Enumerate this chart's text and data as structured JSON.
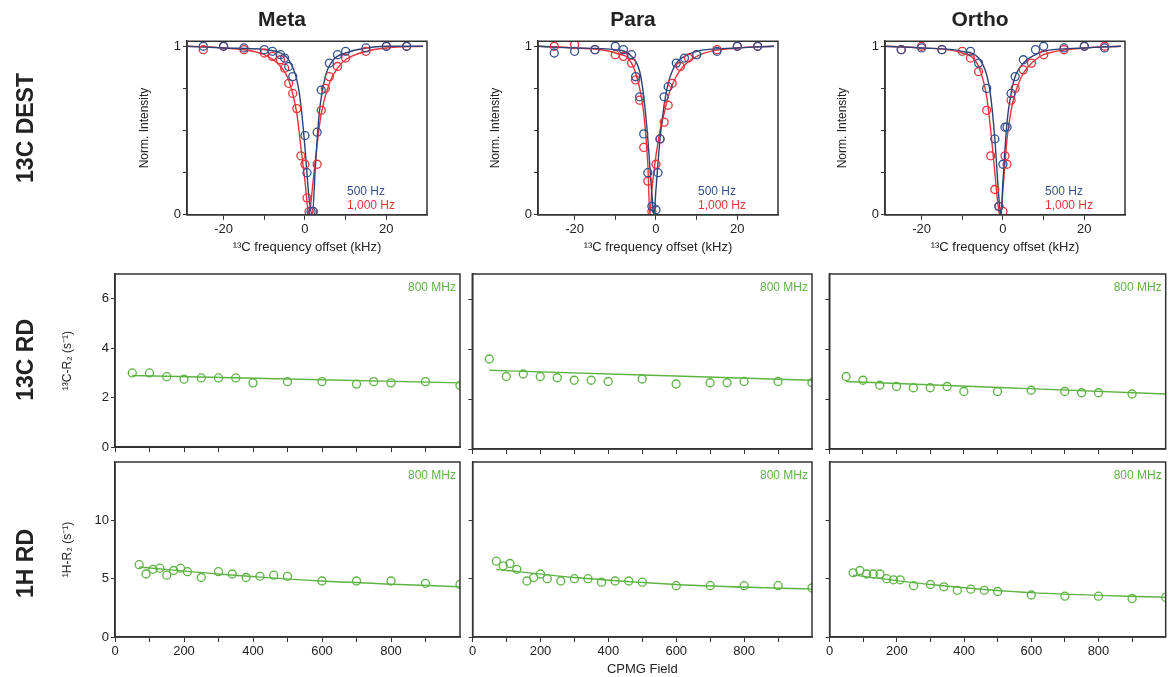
{
  "chart_data": [
    {
      "type": "scatter",
      "title": "Meta",
      "subtitle": "13C DEST",
      "xlabel": "¹³C frequency offset (kHz)",
      "ylabel": "Norm. Intensity",
      "xlim": [
        -29,
        30
      ],
      "xticks": [
        -20,
        {
          "value": -10,
          "label": null
        },
        0,
        {
          "value": 10,
          "label": null
        },
        20
      ],
      "ylim": [
        0,
        1.03
      ],
      "yticks": [
        0,
        {
          "value": 0.25,
          "label": null
        },
        {
          "value": 0.5,
          "label": null
        },
        {
          "value": 0.75,
          "label": null
        },
        1
      ],
      "marker": "circle",
      "legend": "bottom right",
      "series": [
        {
          "name": "500 Hz",
          "color": "#34508f",
          "x": [
            -25,
            -20,
            -15,
            -10,
            -8,
            -6,
            -5,
            -4,
            -3,
            0,
            0.5,
            1.5,
            2,
            3,
            4,
            6,
            8,
            10,
            15,
            20,
            25
          ],
          "values": [
            1,
            1,
            0.99,
            0.98,
            0.97,
            0.95,
            0.93,
            0.88,
            0.82,
            0.47,
            0.25,
            0.02,
            0.02,
            0.49,
            0.74,
            0.9,
            0.95,
            0.97,
            0.99,
            1,
            1
          ]
        },
        {
          "name": "1,000 Hz",
          "color": "#e8333a",
          "x": [
            -25,
            -20,
            -15,
            -10,
            -8,
            -6,
            -5,
            -4,
            -3,
            -2,
            -1,
            0,
            0.5,
            1,
            2,
            3,
            4,
            5,
            6,
            8,
            10,
            15,
            20,
            25
          ],
          "values": [
            0.98,
            1,
            0.98,
            0.96,
            0.94,
            0.92,
            0.87,
            0.78,
            0.72,
            0.63,
            0.35,
            0.3,
            0.1,
            0.02,
            0.02,
            0.3,
            0.62,
            0.75,
            0.82,
            0.88,
            0.93,
            0.97,
            1,
            1
          ]
        },
        {
          "type": "line",
          "marker": "none",
          "color": "#2b4176",
          "x": [
            -29,
            -20,
            -10,
            -6,
            -4,
            -2,
            -1,
            0,
            1,
            1.8,
            2.6,
            3.5,
            5,
            7,
            10,
            15,
            20,
            29
          ],
          "values": [
            1,
            0.99,
            0.98,
            0.96,
            0.92,
            0.8,
            0.65,
            0.4,
            0.1,
            0,
            0.3,
            0.6,
            0.82,
            0.92,
            0.96,
            0.99,
            1,
            1
          ]
        },
        {
          "type": "line",
          "marker": "none",
          "color": "#e8333a",
          "x": [
            -29,
            -20,
            -10,
            -6,
            -4,
            -2,
            -1,
            0,
            1,
            2,
            3,
            4,
            6,
            8,
            10,
            15,
            20,
            29
          ],
          "values": [
            1,
            0.99,
            0.95,
            0.88,
            0.8,
            0.6,
            0.4,
            0.2,
            0,
            0.2,
            0.42,
            0.6,
            0.78,
            0.87,
            0.92,
            0.97,
            0.99,
            1
          ]
        }
      ]
    },
    {
      "type": "scatter",
      "title": "Para",
      "xlabel": "¹³C frequency offset (kHz)",
      "ylabel": "Norm. Intensity",
      "xlim": [
        -29,
        30
      ],
      "xticks": [
        -20,
        {
          "value": -10,
          "label": null
        },
        0,
        {
          "value": 10,
          "label": null
        },
        20
      ],
      "ylim": [
        0,
        1.03
      ],
      "yticks": [
        0,
        {
          "value": 0.25,
          "label": null
        },
        {
          "value": 0.5,
          "label": null
        },
        {
          "value": 0.75,
          "label": null
        },
        1
      ],
      "marker": "circle",
      "legend": "bottom right",
      "series": [
        {
          "name": "500 Hz",
          "color": "#34508f",
          "x": [
            -25,
            -20,
            -15,
            -10,
            -8,
            -6,
            -5,
            -4,
            -3,
            -2,
            -1,
            0,
            0.5,
            1,
            2,
            3,
            5,
            7,
            10,
            15,
            20,
            25
          ],
          "values": [
            0.96,
            0.97,
            0.98,
            1,
            0.98,
            0.95,
            0.82,
            0.7,
            0.48,
            0.25,
            0.05,
            0.03,
            0.25,
            0.45,
            0.7,
            0.76,
            0.9,
            0.93,
            0.95,
            0.97,
            1,
            1
          ]
        },
        {
          "name": "1,000 Hz",
          "color": "#e8333a",
          "x": [
            -25,
            -20,
            -15,
            -10,
            -8,
            -6,
            -5,
            -4,
            -3,
            -2,
            -1,
            0,
            1,
            2,
            3,
            4,
            6,
            8,
            10,
            15,
            20,
            25
          ],
          "values": [
            1,
            1.01,
            0.98,
            0.95,
            0.94,
            0.9,
            0.8,
            0.68,
            0.4,
            0.2,
            0.02,
            0.3,
            0.45,
            0.55,
            0.65,
            0.78,
            0.88,
            0.93,
            0.95,
            0.98,
            1,
            1
          ]
        },
        {
          "type": "line",
          "marker": "none",
          "color": "#2b4176",
          "x": [
            -29,
            -20,
            -10,
            -6,
            -4,
            -3,
            -2,
            -1,
            -0.5,
            0,
            1,
            2,
            3,
            5,
            7,
            10,
            20,
            29
          ],
          "values": [
            1,
            0.99,
            0.98,
            0.94,
            0.85,
            0.7,
            0.45,
            0.12,
            0,
            0.15,
            0.45,
            0.65,
            0.78,
            0.9,
            0.94,
            0.97,
            0.99,
            1
          ]
        },
        {
          "type": "line",
          "marker": "none",
          "color": "#e8333a",
          "x": [
            -29,
            -20,
            -10,
            -6,
            -4,
            -3,
            -2,
            -1.5,
            -1,
            0,
            1,
            2,
            3,
            4,
            6,
            10,
            20,
            29
          ],
          "values": [
            1,
            0.99,
            0.96,
            0.9,
            0.75,
            0.6,
            0.3,
            0,
            0.15,
            0.35,
            0.5,
            0.6,
            0.7,
            0.77,
            0.86,
            0.94,
            0.99,
            1
          ]
        }
      ]
    },
    {
      "type": "scatter",
      "title": "Ortho",
      "xlabel": "¹³C frequency offset (kHz)",
      "ylabel": "Norm. Intensity",
      "xlim": [
        -29,
        30
      ],
      "xticks": [
        -20,
        {
          "value": -10,
          "label": null
        },
        0,
        {
          "value": 10,
          "label": null
        },
        20
      ],
      "ylim": [
        0,
        1.03
      ],
      "yticks": [
        0,
        {
          "value": 0.25,
          "label": null
        },
        {
          "value": 0.5,
          "label": null
        },
        {
          "value": 0.75,
          "label": null
        },
        1
      ],
      "marker": "circle",
      "legend": "bottom right",
      "series": [
        {
          "name": "500 Hz",
          "color": "#34508f",
          "x": [
            -25,
            -20,
            -15,
            -8,
            -6,
            -4,
            -2,
            -1,
            0,
            0.5,
            1,
            2,
            3,
            5,
            8,
            10,
            15,
            20,
            25
          ],
          "values": [
            0.98,
            0.99,
            0.98,
            0.97,
            0.9,
            0.75,
            0.45,
            0.05,
            0.3,
            0.52,
            0.52,
            0.72,
            0.82,
            0.92,
            0.98,
            1,
            0.99,
            1,
            0.99
          ]
        },
        {
          "name": "1,000 Hz",
          "color": "#e8333a",
          "x": [
            -25,
            -20,
            -15,
            -10,
            -8,
            -6,
            -4,
            -3,
            -2,
            -1,
            0,
            0.5,
            1,
            2,
            3,
            5,
            7,
            10,
            15,
            20,
            25
          ],
          "values": [
            0.98,
            1,
            0.98,
            0.97,
            0.93,
            0.85,
            0.62,
            0.35,
            0.15,
            0.05,
            0.02,
            0.35,
            0.3,
            0.68,
            0.75,
            0.86,
            0.9,
            0.95,
            0.98,
            1,
            1
          ]
        },
        {
          "type": "line",
          "marker": "none",
          "color": "#2b4176",
          "x": [
            -29,
            -20,
            -10,
            -6,
            -4,
            -3,
            -2,
            -1,
            -0.5,
            0,
            1,
            2,
            3,
            5,
            8,
            10,
            20,
            29
          ],
          "values": [
            1,
            0.99,
            0.97,
            0.93,
            0.83,
            0.7,
            0.45,
            0.1,
            0,
            0.2,
            0.55,
            0.72,
            0.82,
            0.9,
            0.95,
            0.97,
            0.99,
            1
          ]
        },
        {
          "type": "line",
          "marker": "none",
          "color": "#e8333a",
          "x": [
            -29,
            -20,
            -10,
            -6,
            -4,
            -3,
            -2,
            -1,
            -0.5,
            0,
            1,
            2,
            3,
            5,
            8,
            10,
            20,
            29
          ],
          "values": [
            1,
            0.99,
            0.96,
            0.88,
            0.7,
            0.5,
            0.25,
            0.02,
            0,
            0.15,
            0.45,
            0.62,
            0.72,
            0.84,
            0.92,
            0.95,
            0.99,
            1
          ]
        }
      ]
    },
    {
      "type": "scatter",
      "subtitle": "13C RD",
      "ylabel": "¹³C-R₂ (s⁻¹)",
      "xlim": [
        0,
        1000
      ],
      "xticks": [
        0,
        {
          "value": 100,
          "label": null
        },
        200,
        {
          "value": 300,
          "label": null
        },
        400,
        {
          "value": 500,
          "label": null
        },
        600,
        {
          "value": 700,
          "label": null
        },
        800,
        {
          "value": 900,
          "label": null
        }
      ],
      "ylim": [
        0,
        7
      ],
      "yticks": [
        0,
        2,
        4,
        6
      ],
      "tick_labels": "y",
      "marker": "circle",
      "annotations": [
        "800 MHz"
      ],
      "series": [
        {
          "color": "#5cb342",
          "x": [
            50,
            100,
            150,
            200,
            250,
            300,
            350,
            400,
            500,
            600,
            700,
            750,
            800,
            900,
            1000
          ],
          "values": [
            3,
            3,
            2.85,
            2.75,
            2.8,
            2.8,
            2.8,
            2.6,
            2.65,
            2.65,
            2.55,
            2.65,
            2.6,
            2.65,
            2.5
          ]
        },
        {
          "type": "line",
          "marker": "none",
          "color": "#5cb342",
          "x": [
            50,
            1000
          ],
          "values": [
            2.9,
            2.6
          ]
        }
      ]
    },
    {
      "type": "scatter",
      "ylabel": null,
      "xlim": [
        0,
        1000
      ],
      "xticks": [
        0,
        {
          "value": 100,
          "label": null
        },
        200,
        {
          "value": 300,
          "label": null
        },
        400,
        {
          "value": 500,
          "label": null
        },
        600,
        {
          "value": 700,
          "label": null
        },
        800,
        {
          "value": 900,
          "label": null
        }
      ],
      "ylim": [
        0,
        7
      ],
      "yticks": [
        0,
        2,
        4,
        6
      ],
      "tick_labels": false,
      "marker": "circle",
      "annotations": [
        "800 MHz"
      ],
      "series": [
        {
          "color": "#5cb342",
          "x": [
            50,
            100,
            150,
            200,
            250,
            300,
            350,
            400,
            500,
            600,
            700,
            750,
            800,
            900,
            1000
          ],
          "values": [
            3.6,
            2.9,
            3,
            2.9,
            2.85,
            2.75,
            2.75,
            2.7,
            2.8,
            2.6,
            2.65,
            2.65,
            2.7,
            2.7,
            2.65
          ]
        },
        {
          "type": "line",
          "marker": "none",
          "color": "#5cb342",
          "x": [
            50,
            1000
          ],
          "values": [
            3.15,
            2.75
          ]
        }
      ]
    },
    {
      "type": "scatter",
      "xlim": [
        0,
        1000
      ],
      "xticks": [
        0,
        {
          "value": 100,
          "label": null
        },
        200,
        {
          "value": 300,
          "label": null
        },
        400,
        {
          "value": 500,
          "label": null
        },
        600,
        {
          "value": 700,
          "label": null
        },
        800,
        {
          "value": 900,
          "label": null
        }
      ],
      "ylim": [
        0,
        7
      ],
      "yticks": [
        0,
        2,
        4,
        6
      ],
      "tick_labels": false,
      "marker": "circle",
      "annotations": [
        "800 MHz"
      ],
      "series": [
        {
          "color": "#5cb342",
          "x": [
            50,
            100,
            150,
            200,
            250,
            300,
            350,
            400,
            500,
            600,
            700,
            750,
            800,
            900
          ],
          "values": [
            2.9,
            2.75,
            2.55,
            2.5,
            2.45,
            2.45,
            2.5,
            2.3,
            2.3,
            2.35,
            2.3,
            2.25,
            2.25,
            2.2
          ]
        },
        {
          "type": "line",
          "marker": "none",
          "color": "#5cb342",
          "x": [
            50,
            1000
          ],
          "values": [
            2.7,
            2.2
          ]
        }
      ]
    },
    {
      "type": "scatter",
      "subtitle": "1H RD",
      "ylabel": "¹H-R₂ (s⁻¹)",
      "xlim": [
        0,
        1000
      ],
      "xticks": [
        0,
        {
          "value": 100,
          "label": null
        },
        200,
        {
          "value": 300,
          "label": null
        },
        400,
        {
          "value": 500,
          "label": null
        },
        600,
        {
          "value": 700,
          "label": null
        },
        800,
        {
          "value": 900,
          "label": null
        }
      ],
      "ylim": [
        0,
        15
      ],
      "yticks": [
        0,
        5,
        10
      ],
      "marker": "circle",
      "annotations": [
        "800 MHz"
      ],
      "series": [
        {
          "color": "#5cb342",
          "x": [
            70,
            90,
            110,
            130,
            150,
            170,
            190,
            210,
            250,
            300,
            340,
            380,
            420,
            460,
            500,
            600,
            700,
            800,
            900,
            1000
          ],
          "values": [
            6.2,
            5.4,
            5.8,
            5.9,
            5.3,
            5.7,
            5.9,
            5.6,
            5.1,
            5.6,
            5.4,
            5.1,
            5.2,
            5.3,
            5.2,
            4.8,
            4.8,
            4.8,
            4.6,
            4.5
          ]
        },
        {
          "type": "line",
          "marker": "none",
          "color": "#5cb342",
          "x": [
            70,
            300,
            600,
            1000
          ],
          "values": [
            6,
            5.4,
            4.8,
            4.3
          ]
        }
      ]
    },
    {
      "type": "scatter",
      "xlabel": "CPMG Field",
      "xlim": [
        0,
        1000
      ],
      "xticks": [
        0,
        {
          "value": 100,
          "label": null
        },
        200,
        {
          "value": 300,
          "label": null
        },
        400,
        {
          "value": 500,
          "label": null
        },
        600,
        {
          "value": 700,
          "label": null
        },
        800,
        {
          "value": 900,
          "label": null
        }
      ],
      "ylim": [
        0,
        15
      ],
      "yticks": [
        0,
        5,
        10
      ],
      "tick_labels": "x",
      "marker": "circle",
      "annotations": [
        "800 MHz"
      ],
      "series": [
        {
          "color": "#5cb342",
          "x": [
            70,
            90,
            110,
            130,
            160,
            180,
            200,
            220,
            260,
            300,
            340,
            380,
            420,
            460,
            500,
            600,
            700,
            800,
            900,
            1000
          ],
          "values": [
            6.5,
            6.1,
            6.3,
            5.8,
            4.8,
            5.1,
            5.4,
            5,
            4.8,
            5,
            5,
            4.7,
            4.8,
            4.8,
            4.7,
            4.4,
            4.4,
            4.4,
            4.4,
            4.2
          ]
        },
        {
          "type": "line",
          "marker": "none",
          "color": "#5cb342",
          "x": [
            70,
            300,
            600,
            1000
          ],
          "values": [
            5.8,
            5.1,
            4.5,
            4.1
          ]
        }
      ]
    },
    {
      "type": "scatter",
      "xlim": [
        0,
        1000
      ],
      "xticks": [
        0,
        {
          "value": 100,
          "label": null
        },
        200,
        {
          "value": 300,
          "label": null
        },
        400,
        {
          "value": 500,
          "label": null
        },
        600,
        {
          "value": 700,
          "label": null
        },
        800,
        {
          "value": 900,
          "label": null
        }
      ],
      "ylim": [
        0,
        15
      ],
      "yticks": [
        0,
        5,
        10
      ],
      "tick_labels": "x",
      "marker": "circle",
      "annotations": [
        "800 MHz"
      ],
      "series": [
        {
          "color": "#5cb342",
          "x": [
            70,
            90,
            110,
            130,
            150,
            170,
            190,
            210,
            250,
            300,
            340,
            380,
            420,
            460,
            500,
            600,
            700,
            800,
            900,
            1000
          ],
          "values": [
            5.5,
            5.7,
            5.4,
            5.4,
            5.4,
            5,
            4.9,
            4.9,
            4.4,
            4.5,
            4.3,
            4,
            4.1,
            4,
            3.9,
            3.6,
            3.5,
            3.5,
            3.3,
            3.4
          ]
        },
        {
          "type": "line",
          "marker": "none",
          "color": "#5cb342",
          "x": [
            70,
            300,
            600,
            1000
          ],
          "values": [
            5.3,
            4.5,
            3.8,
            3.4
          ]
        }
      ]
    }
  ]
}
